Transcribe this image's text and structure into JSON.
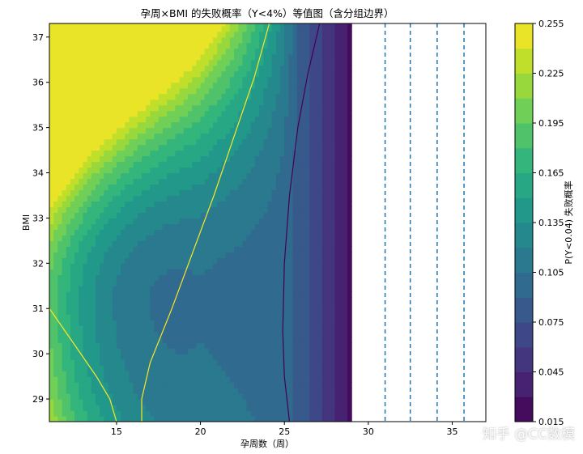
{
  "chart_data": {
    "type": "contour",
    "title": "孕周×BMI 的失败概率（Y<4%）等值图（含分组边界）",
    "xlabel": "孕周数（周）",
    "ylabel": "BMI",
    "xlim": [
      11,
      37
    ],
    "ylim": [
      28.5,
      37.3
    ],
    "xticks": [
      "15",
      "20",
      "25",
      "30",
      "35"
    ],
    "yticks": [
      "29",
      "30",
      "31",
      "32",
      "33",
      "34",
      "35",
      "36",
      "37"
    ],
    "data_xmax": 29,
    "colorbar": {
      "label": "P(Y<0.04) 失败概率",
      "min": 0.015,
      "max": 0.255,
      "step": 0.015,
      "ticks": [
        "0.015",
        "0.045",
        "0.075",
        "0.105",
        "0.135",
        "0.165",
        "0.195",
        "0.225",
        "0.255"
      ]
    },
    "boundary_lines_x": [
      31,
      32.5,
      34.1,
      35.7
    ],
    "contour_lines": [
      {
        "level": "yellow",
        "color": "#fde725"
      },
      {
        "level": "purple",
        "color": "#440154"
      }
    ]
  },
  "watermark": "知乎 @CC数模"
}
